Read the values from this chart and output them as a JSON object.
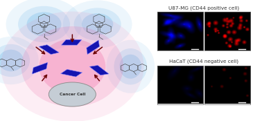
{
  "background_color": "#ffffff",
  "left_panel": {
    "cancer_cell_color": "#c5cdd5",
    "cancer_cell_edge": "#909090",
    "cancer_cell_label": "Cancer Cell",
    "pink_glow_color": "#f060a0",
    "blue_glow_color": "#70b8e8",
    "arrow_color": "#6b0000",
    "scaffold_color": "#1515b0"
  },
  "right_panel": {
    "top_label": "U87-MG (CD44 positive cell)",
    "bottom_label": "HaCaT (CD44 negative cell)"
  },
  "label_color": "#333333",
  "label_fontsize": 5.2
}
